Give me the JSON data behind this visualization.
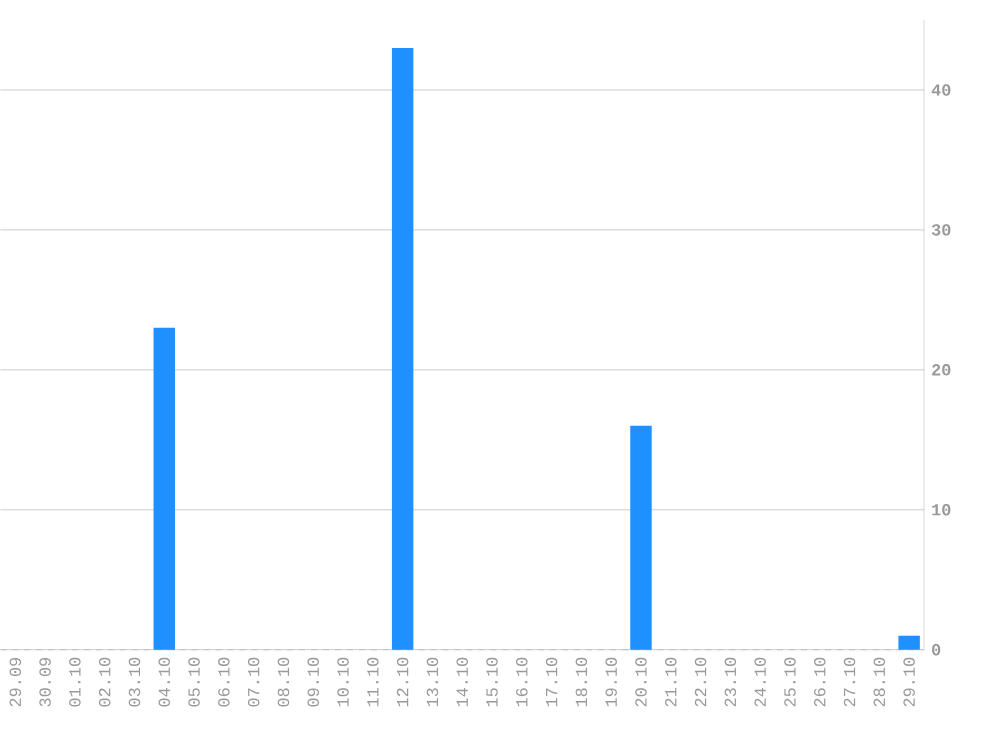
{
  "chart_data": {
    "type": "bar",
    "categories": [
      "29.09",
      "30.09",
      "01.10",
      "02.10",
      "03.10",
      "04.10",
      "05.10",
      "06.10",
      "07.10",
      "08.10",
      "09.10",
      "10.10",
      "11.10",
      "12.10",
      "13.10",
      "14.10",
      "15.10",
      "16.10",
      "17.10",
      "18.10",
      "19.10",
      "20.10",
      "21.10",
      "22.10",
      "23.10",
      "24.10",
      "25.10",
      "26.10",
      "27.10",
      "28.10",
      "29.10"
    ],
    "values": [
      0,
      0,
      0,
      0,
      0,
      23,
      0,
      0,
      0,
      0,
      0,
      0,
      0,
      43,
      0,
      0,
      0,
      0,
      0,
      0,
      0,
      16,
      0,
      0,
      0,
      0,
      0,
      0,
      0,
      0,
      1
    ],
    "color": "#1e90ff",
    "ylim": [
      0,
      45
    ],
    "yticks": [
      0,
      10,
      20,
      30,
      40
    ],
    "grid": "y"
  }
}
